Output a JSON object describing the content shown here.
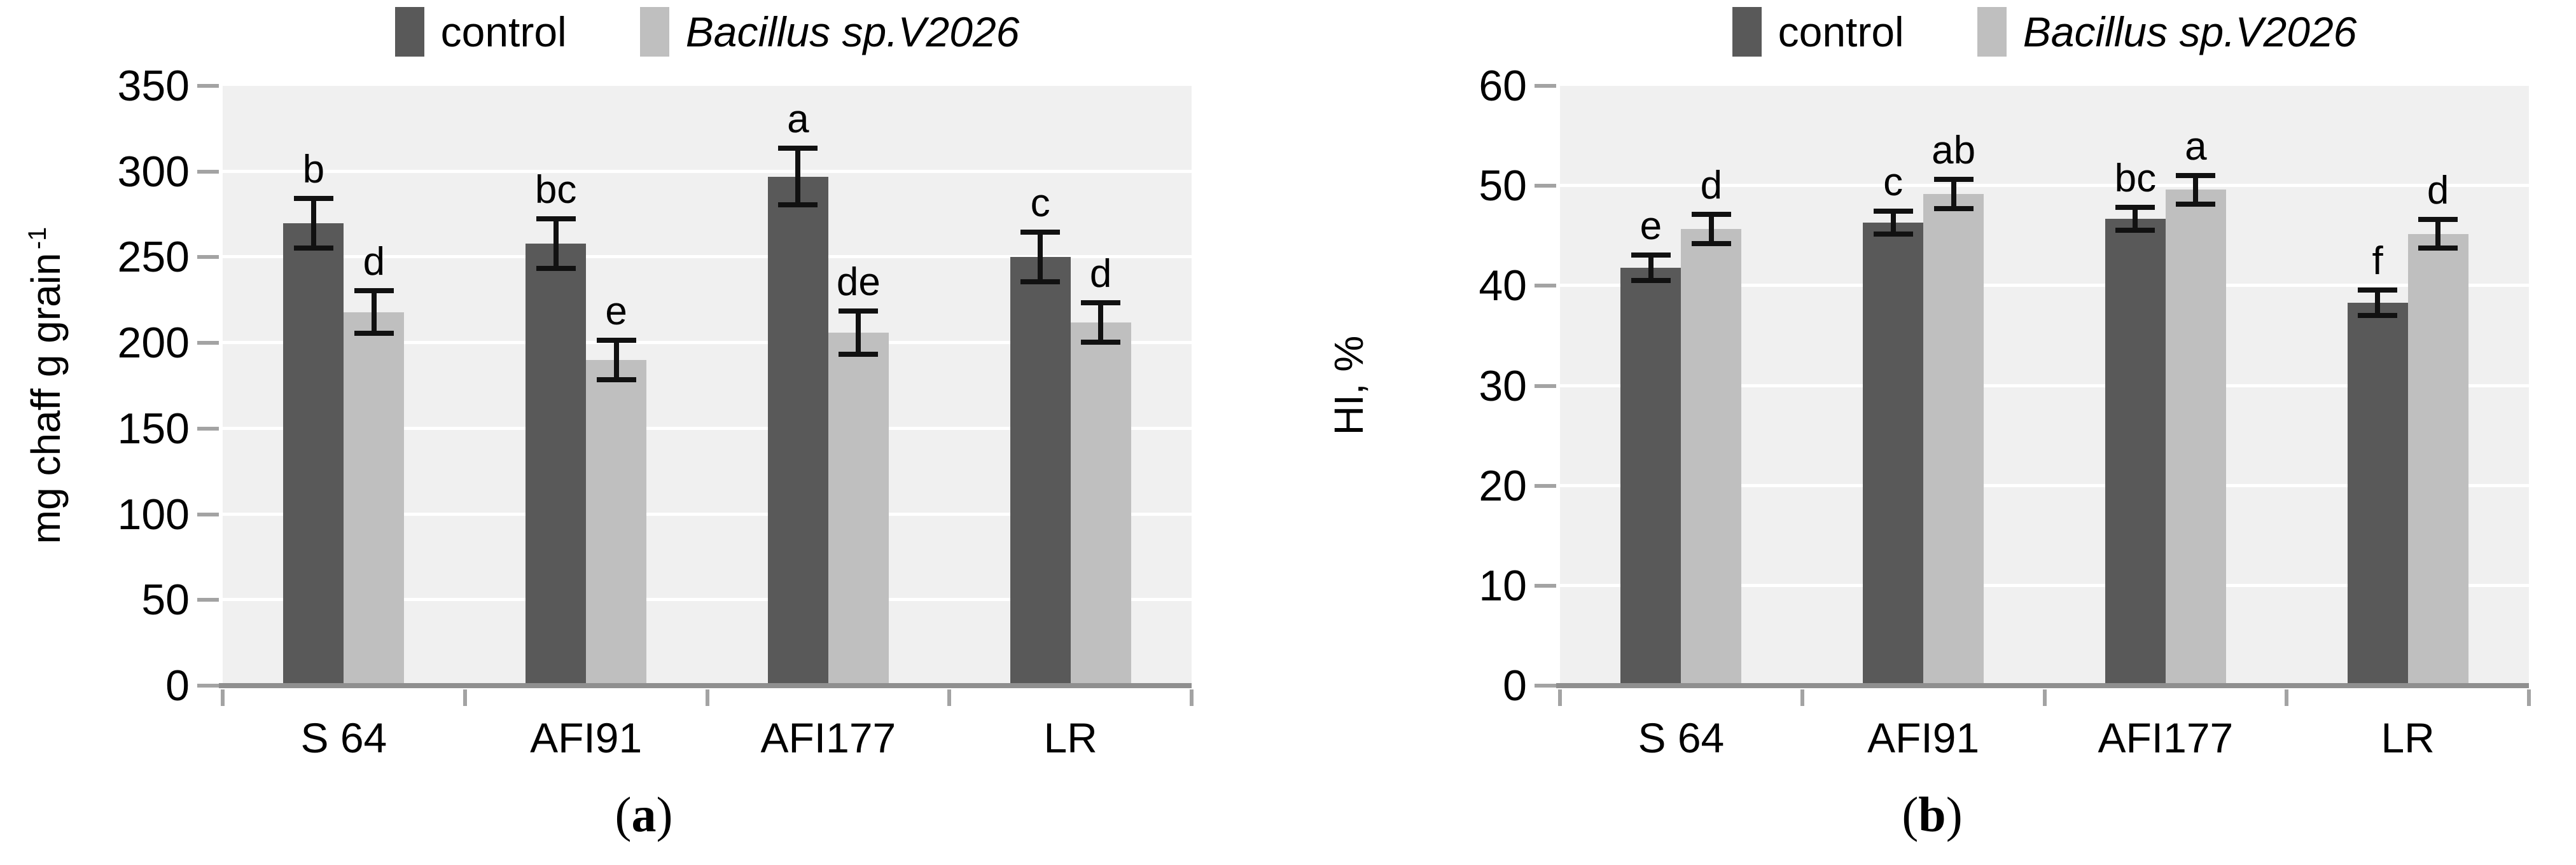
{
  "colors": {
    "control_bar": "#595959",
    "treatment_bar": "#BFBFBF",
    "plot_background": "#F0F0F0",
    "gridline": "#FFFFFF",
    "axis": "#A3A3A3",
    "error_bar": "#111111"
  },
  "chart_data": [
    {
      "type": "bar",
      "panel": "a",
      "caption_open": "(",
      "caption_letter": "a",
      "caption_close": ")",
      "categories": [
        "S 64",
        "AFI91",
        "AFI177",
        "LR"
      ],
      "series": [
        {
          "name": "control",
          "color": "#595959",
          "values": [
            270,
            258,
            297,
            250
          ],
          "errors": [
            13,
            13,
            15,
            13
          ],
          "sig_letters": [
            "b",
            "bc",
            "a",
            "c"
          ]
        },
        {
          "name": "Bacillus sp.V2026",
          "color": "#BFBFBF",
          "values": [
            218,
            190,
            206,
            212
          ],
          "errors": [
            11,
            10,
            11,
            10
          ],
          "sig_letters": [
            "d",
            "e",
            "de",
            "d"
          ]
        }
      ],
      "ylabel": "mg chaff g grain",
      "ylabel_sup": "-1",
      "xlabel": "",
      "ylim": [
        0,
        350
      ],
      "ytick_step": 50,
      "yticks": [
        0,
        50,
        100,
        150,
        200,
        250,
        300,
        350
      ],
      "grid": true,
      "legend_position": "top"
    },
    {
      "type": "bar",
      "panel": "b",
      "caption_open": "(",
      "caption_letter": "b",
      "caption_close": ")",
      "categories": [
        "S 64",
        "AFI91",
        "AFI177",
        "LR"
      ],
      "series": [
        {
          "name": "control",
          "color": "#595959",
          "values": [
            41.8,
            46.3,
            46.7,
            38.3
          ],
          "errors": [
            1.0,
            0.9,
            0.9,
            1.0
          ],
          "sig_letters": [
            "e",
            "c",
            "bc",
            "f"
          ]
        },
        {
          "name": "Bacillus sp.V2026",
          "color": "#BFBFBF",
          "values": [
            45.7,
            49.2,
            49.6,
            45.2
          ],
          "errors": [
            1.2,
            1.2,
            1.2,
            1.2
          ],
          "sig_letters": [
            "d",
            "ab",
            "a",
            "d"
          ]
        }
      ],
      "ylabel": "HI, %",
      "ylabel_sup": "",
      "xlabel": "",
      "ylim": [
        0,
        60
      ],
      "ytick_step": 10,
      "yticks": [
        0,
        10,
        20,
        30,
        40,
        50,
        60
      ],
      "grid": true,
      "legend_position": "top"
    }
  ]
}
